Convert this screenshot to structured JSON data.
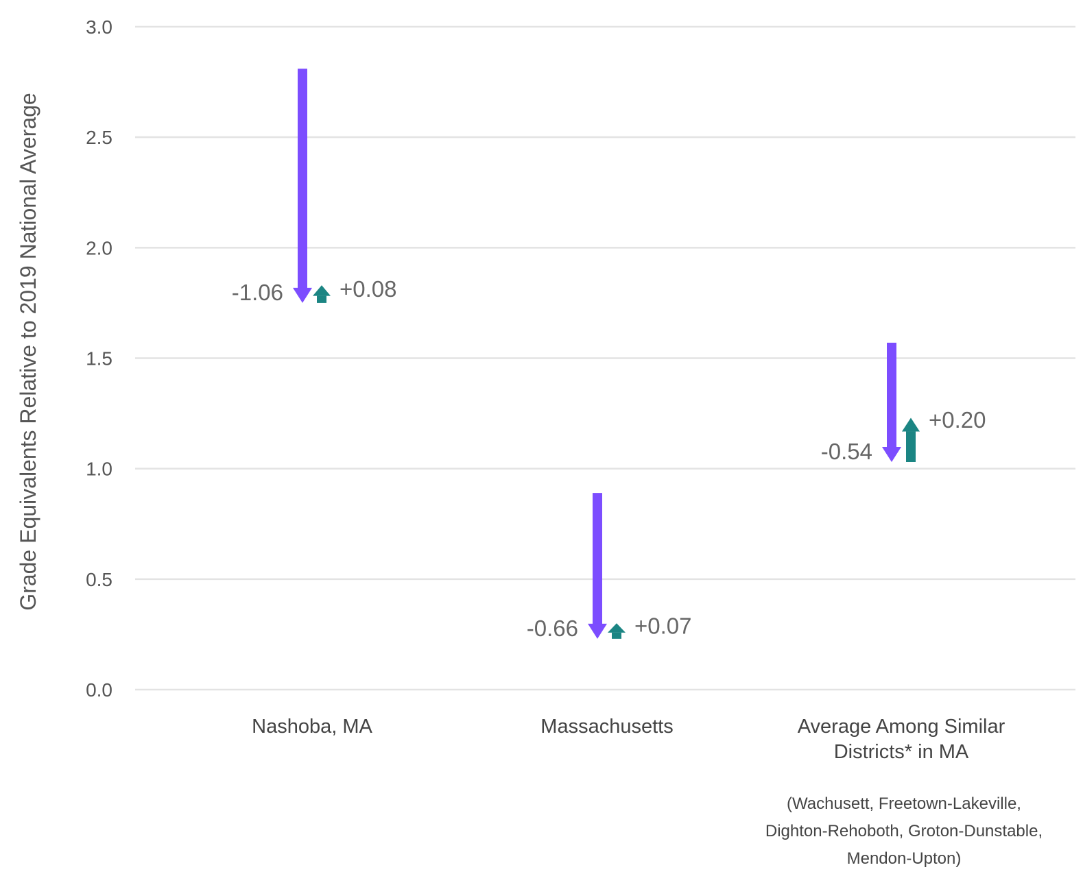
{
  "chart_data": {
    "type": "arrow",
    "ylabel": "Grade Equivalents Relative to 2019 National Average",
    "ylim": [
      0,
      3
    ],
    "yticks": [
      "0.0",
      "0.5",
      "1.0",
      "1.5",
      "2.0",
      "2.5",
      "3.0"
    ],
    "grid": true,
    "colors": {
      "decline": "#7c4dff",
      "recovery": "#1b8583",
      "grid": "#e3e3e3"
    },
    "categories": [
      {
        "label_lines": [
          "Nashoba, MA"
        ],
        "note_lines": [],
        "decline": {
          "start": 2.81,
          "end": 1.75,
          "label": "-1.06"
        },
        "recovery": {
          "start": 1.75,
          "end": 1.83,
          "label": "+0.08"
        }
      },
      {
        "label_lines": [
          "Massachusetts"
        ],
        "note_lines": [],
        "decline": {
          "start": 0.89,
          "end": 0.23,
          "label": "-0.66"
        },
        "recovery": {
          "start": 0.23,
          "end": 0.3,
          "label": "+0.07"
        }
      },
      {
        "label_lines": [
          "Average Among Similar",
          "Districts* in MA"
        ],
        "note_lines": [
          "(Wachusett, Freetown-Lakeville,",
          "Dighton-Rehoboth, Groton-Dunstable,",
          "Mendon-Upton)"
        ],
        "decline": {
          "start": 1.57,
          "end": 1.03,
          "label": "-0.54"
        },
        "recovery": {
          "start": 1.03,
          "end": 1.23,
          "label": "+0.20"
        }
      }
    ]
  }
}
